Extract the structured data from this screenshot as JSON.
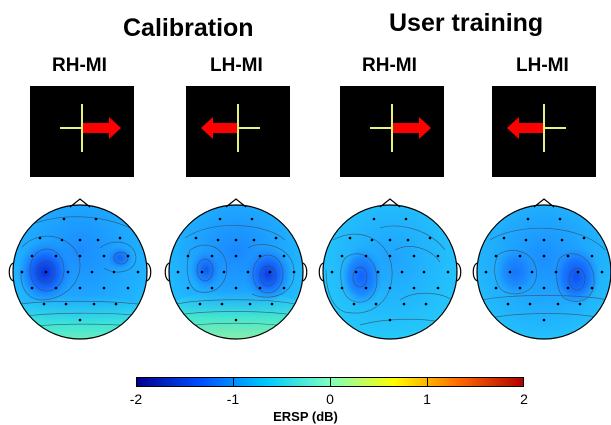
{
  "groups": [
    {
      "title": "Calibration",
      "conditions": [
        {
          "label": "RH-MI",
          "arrow": "right"
        },
        {
          "label": "LH-MI",
          "arrow": "left"
        }
      ]
    },
    {
      "title": "User training",
      "conditions": [
        {
          "label": "RH-MI",
          "arrow": "right"
        },
        {
          "label": "LH-MI",
          "arrow": "left"
        }
      ]
    }
  ],
  "colorbar": {
    "label": "ERSP (dB)",
    "min": -2,
    "max": 2,
    "ticks": [
      "-2",
      "-1",
      "0",
      "1",
      "2"
    ],
    "colors": [
      "#00008f",
      "#0050ff",
      "#00c8ff",
      "#7dffc0",
      "#ffff00",
      "#ff6a00",
      "#b20000"
    ]
  },
  "colors": {
    "cue_background": "#000000",
    "cross": "#e8f27a",
    "arrow": "#ff0000"
  }
}
